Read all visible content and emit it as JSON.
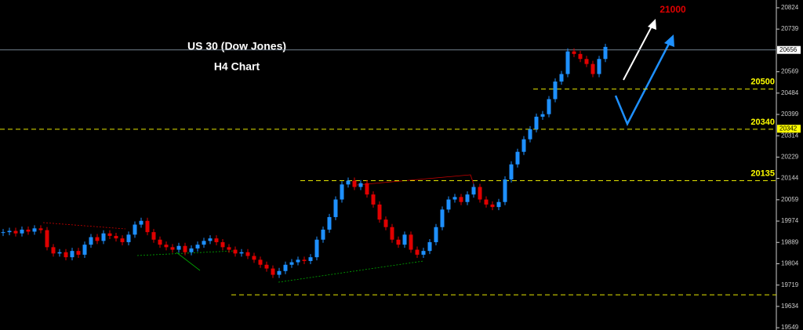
{
  "chart_data": {
    "type": "candlestick",
    "title": "US 30 (Dow Jones)",
    "subtitle": "H4 Chart",
    "target": 21000,
    "up_color": "#1e90ff",
    "down_color": "#e00000",
    "ylim": [
      19540,
      20855
    ],
    "yticks": [
      20824,
      20739,
      20569,
      20484,
      20399,
      20314,
      20229,
      20144,
      20059,
      19974,
      19889,
      19804,
      19719,
      19634,
      19549
    ],
    "markers": [
      {
        "value": 20656,
        "color": "#ffffff"
      },
      {
        "value": 20342,
        "color": "#ffff00"
      }
    ],
    "levels": [
      {
        "value": 20500
      },
      {
        "value": 20340
      },
      {
        "value": 20135
      },
      {
        "value": 19680
      }
    ],
    "close": [
      19930,
      19935,
      19925,
      19940,
      19932,
      19945,
      19938,
      19870,
      19845,
      19850,
      19830,
      19855,
      19840,
      19880,
      19910,
      19895,
      19925,
      19915,
      19905,
      19890,
      19920,
      19960,
      19975,
      19930,
      19900,
      19880,
      19870,
      19860,
      19875,
      19850,
      19865,
      19880,
      19895,
      19905,
      19890,
      19870,
      19860,
      19845,
      19850,
      19835,
      19820,
      19800,
      19785,
      19760,
      19775,
      19800,
      19810,
      19820,
      19815,
      19830,
      19900,
      19940,
      19990,
      20060,
      20120,
      20135,
      20110,
      20125,
      20080,
      20040,
      19980,
      19950,
      19900,
      19880,
      19920,
      19860,
      19840,
      19855,
      19890,
      19950,
      20020,
      20060,
      20070,
      20050,
      20080,
      20110,
      20060,
      20040,
      20030,
      20050,
      20140,
      20200,
      20250,
      20300,
      20340,
      20390,
      20400,
      20460,
      20530,
      20560,
      20650,
      20640,
      20620,
      20600,
      20560,
      20620,
      20668
    ]
  }
}
